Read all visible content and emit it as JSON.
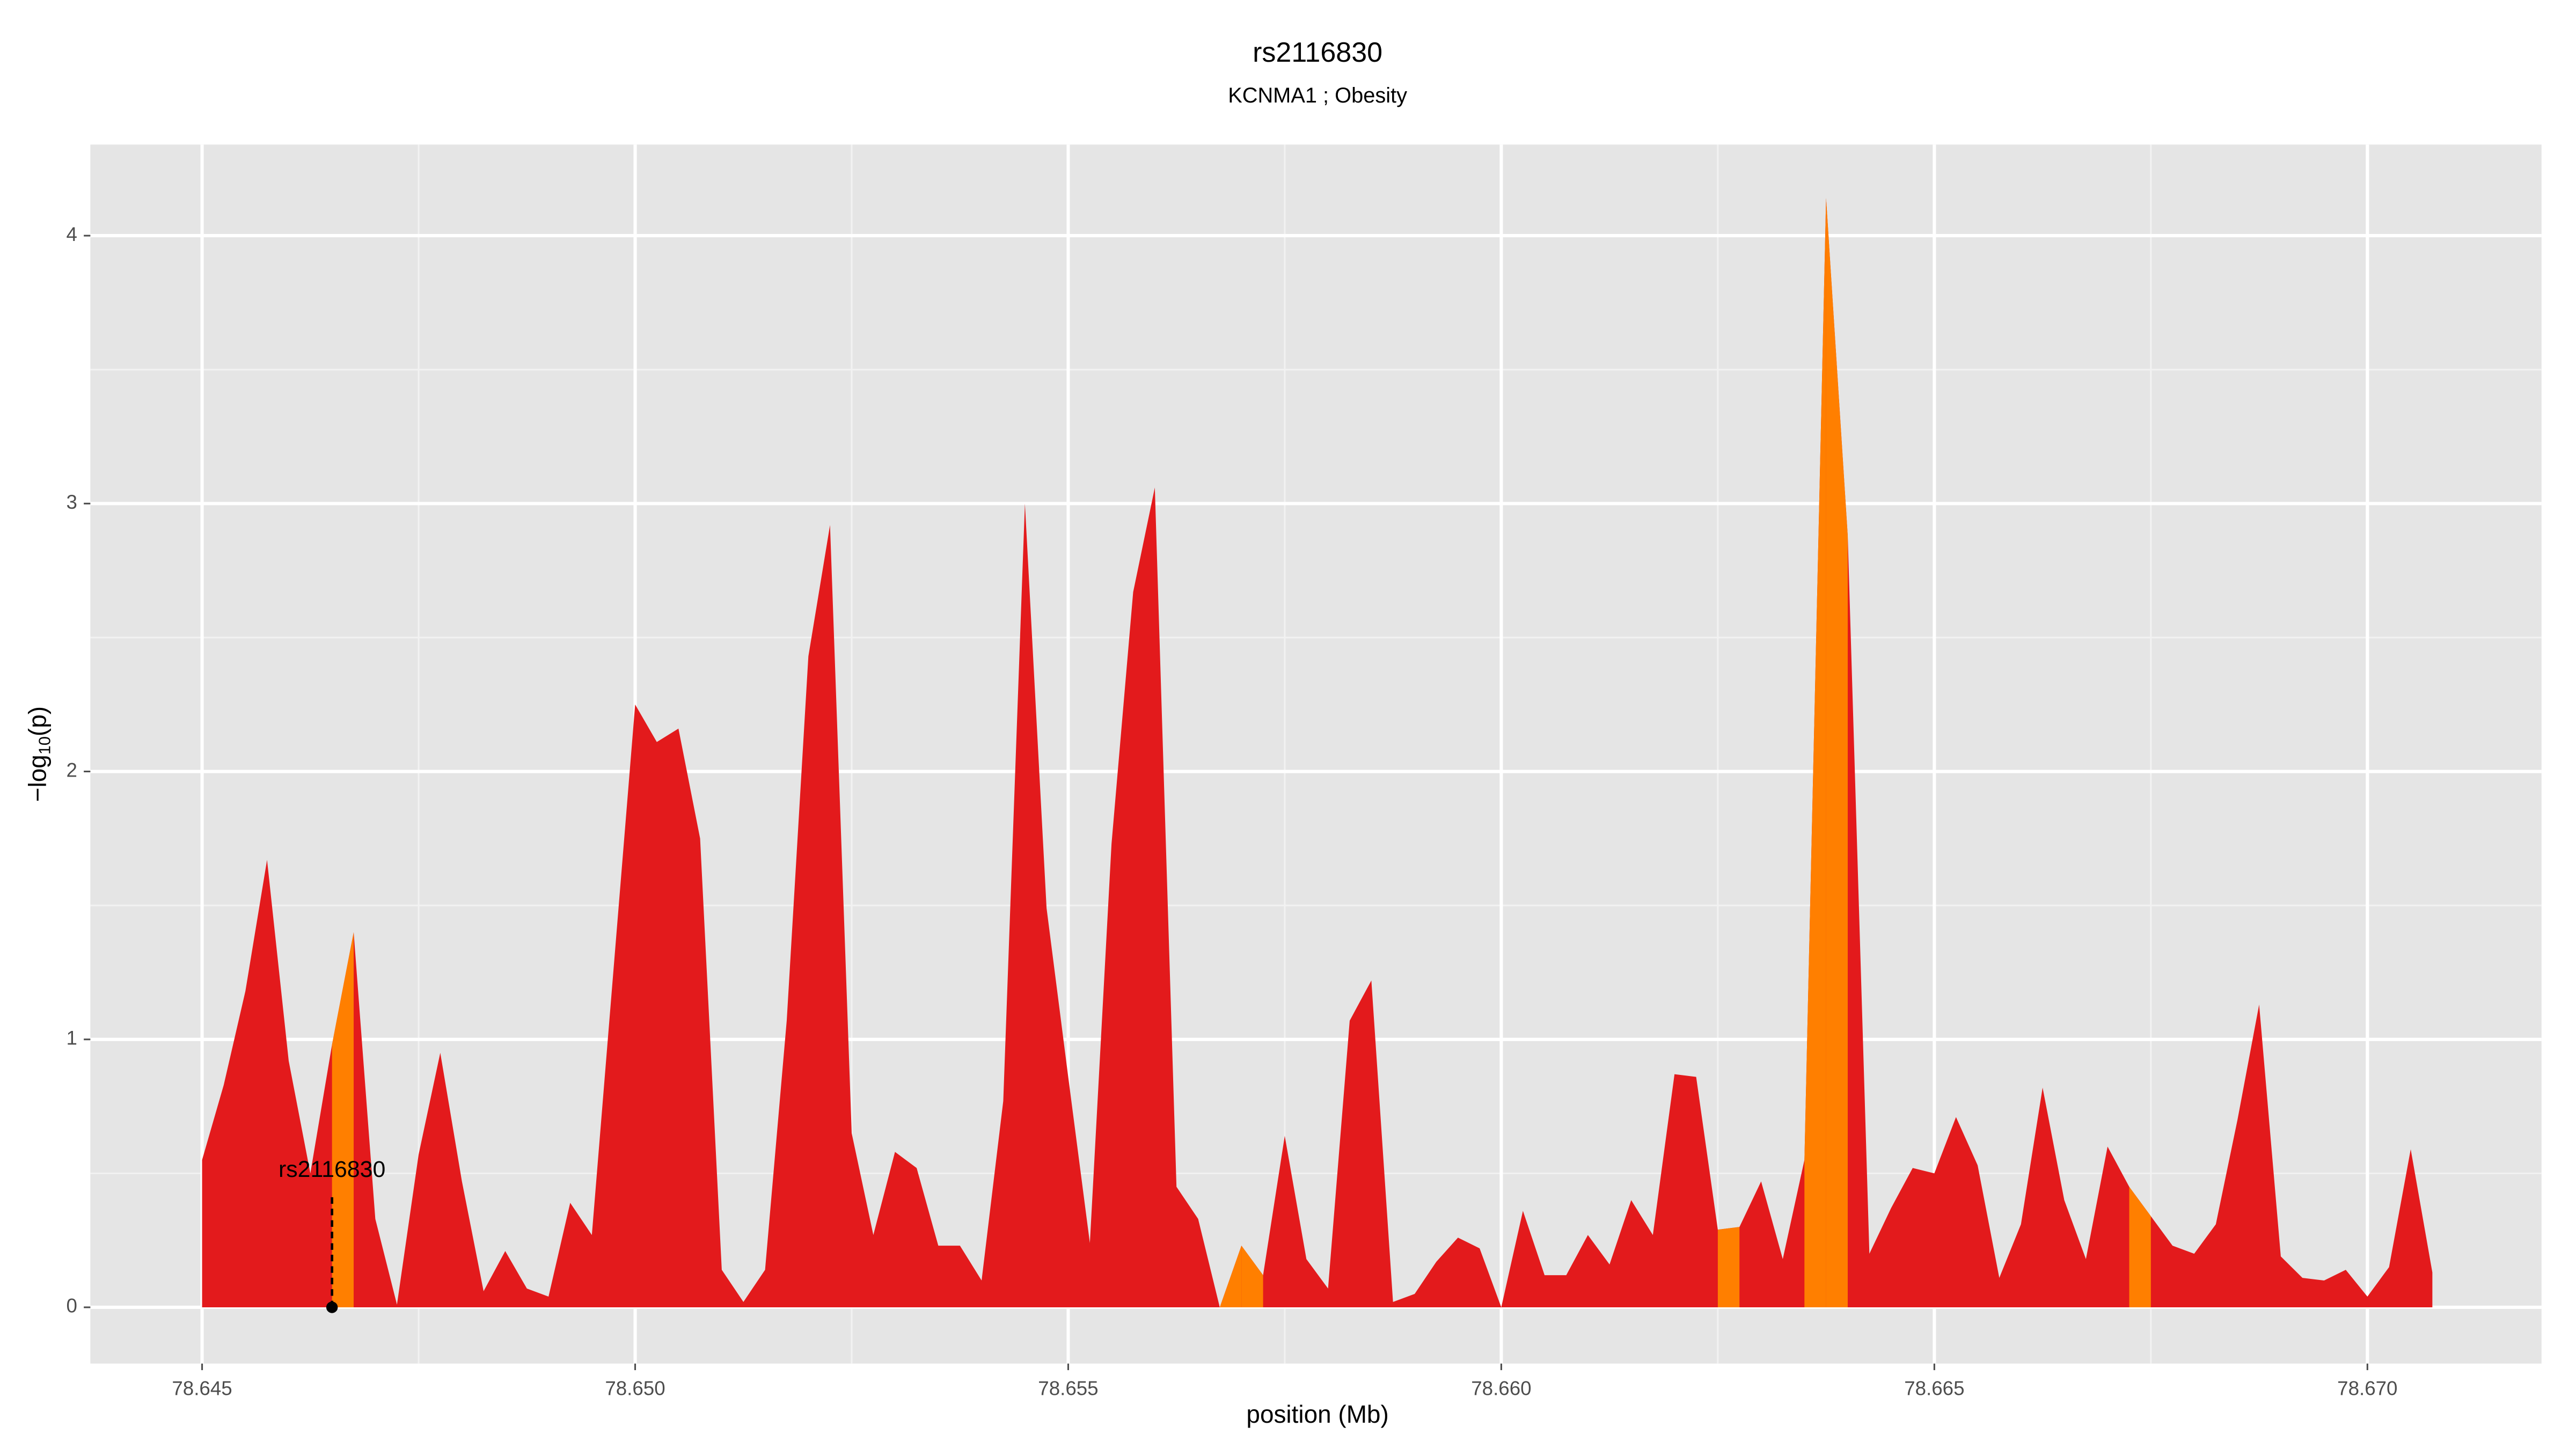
{
  "chart_data": {
    "type": "area",
    "title": "rs2116830",
    "subtitle": "KCNMA1 ; Obesity",
    "x_label": "position (Mb)",
    "y_label": {
      "text": "−log",
      "sub": "10",
      "after": "(p)"
    },
    "x": [
      78.645,
      78.64525,
      78.6455,
      78.64575,
      78.646,
      78.64625,
      78.6465,
      78.64675,
      78.647,
      78.64725,
      78.6475,
      78.64775,
      78.648,
      78.64825,
      78.6485,
      78.64875,
      78.649,
      78.64925,
      78.6495,
      78.64975,
      78.65,
      78.65025,
      78.6505,
      78.65075,
      78.651,
      78.65125,
      78.6515,
      78.65175,
      78.652,
      78.65225,
      78.6525,
      78.65275,
      78.653,
      78.65325,
      78.6535,
      78.65375,
      78.654,
      78.65425,
      78.6545,
      78.65475,
      78.655,
      78.65525,
      78.6555,
      78.65575,
      78.656,
      78.65625,
      78.6565,
      78.65675,
      78.657,
      78.65725,
      78.6575,
      78.65775,
      78.658,
      78.65825,
      78.6585,
      78.65875,
      78.659,
      78.65925,
      78.6595,
      78.65975,
      78.66,
      78.66025,
      78.6605,
      78.66075,
      78.661,
      78.66125,
      78.6615,
      78.66175,
      78.662,
      78.66225,
      78.6625,
      78.66275,
      78.663,
      78.66325,
      78.6635,
      78.66375,
      78.664,
      78.66425,
      78.6645,
      78.66475,
      78.665,
      78.66525,
      78.6655,
      78.66575,
      78.666,
      78.66625,
      78.6665,
      78.66675,
      78.667,
      78.66725,
      78.6675,
      78.66775,
      78.668,
      78.66825,
      78.6685,
      78.66875,
      78.669,
      78.66925,
      78.6695,
      78.66975,
      78.67,
      78.67025,
      78.6705,
      78.67075
    ],
    "values": [
      0.55,
      0.83,
      1.18,
      1.67,
      0.92,
      0.5,
      0.98,
      1.4,
      0.33,
      0.01,
      0.57,
      0.95,
      0.47,
      0.06,
      0.21,
      0.07,
      0.04,
      0.39,
      0.27,
      1.26,
      2.25,
      2.11,
      2.16,
      1.75,
      0.14,
      0.02,
      0.14,
      1.07,
      2.43,
      2.92,
      0.65,
      0.27,
      0.58,
      0.52,
      0.23,
      0.23,
      0.1,
      0.77,
      3.0,
      1.49,
      0.86,
      0.24,
      1.73,
      2.67,
      3.06,
      0.45,
      0.33,
      0.0,
      0.23,
      0.12,
      0.64,
      0.18,
      0.07,
      1.07,
      1.22,
      0.02,
      0.05,
      0.17,
      0.26,
      0.22,
      0.0,
      0.36,
      0.12,
      0.12,
      0.27,
      0.16,
      0.4,
      0.27,
      0.87,
      0.86,
      0.29,
      0.3,
      0.47,
      0.18,
      0.55,
      4.14,
      2.88,
      0.2,
      0.37,
      0.52,
      0.5,
      0.71,
      0.53,
      0.11,
      0.31,
      0.82,
      0.4,
      0.18,
      0.6,
      0.45,
      0.34,
      0.23,
      0.2,
      0.31,
      0.7,
      1.13,
      0.19,
      0.11,
      0.1,
      0.14,
      0.04,
      0.15,
      0.59,
      0.13
    ],
    "color": "#e31a1c",
    "highlight_color": "#ff7f00",
    "highlighted_intervals": [
      6,
      47,
      48,
      70,
      74,
      75,
      89
    ],
    "annotation": {
      "text": "rs2116830",
      "x": 78.6465,
      "y": 0
    },
    "xlim": [
      78.64371,
      78.67201
    ],
    "ylim": [
      -0.21,
      4.34
    ],
    "xticks": [
      78.645,
      {
        "value": 78.65,
        "label": "78.650"
      },
      78.655,
      {
        "value": 78.66,
        "label": "78.660"
      },
      78.665,
      {
        "value": 78.67,
        "label": "78.670"
      }
    ],
    "yticks": [
      0,
      1,
      2,
      3,
      4
    ],
    "grid": true
  }
}
